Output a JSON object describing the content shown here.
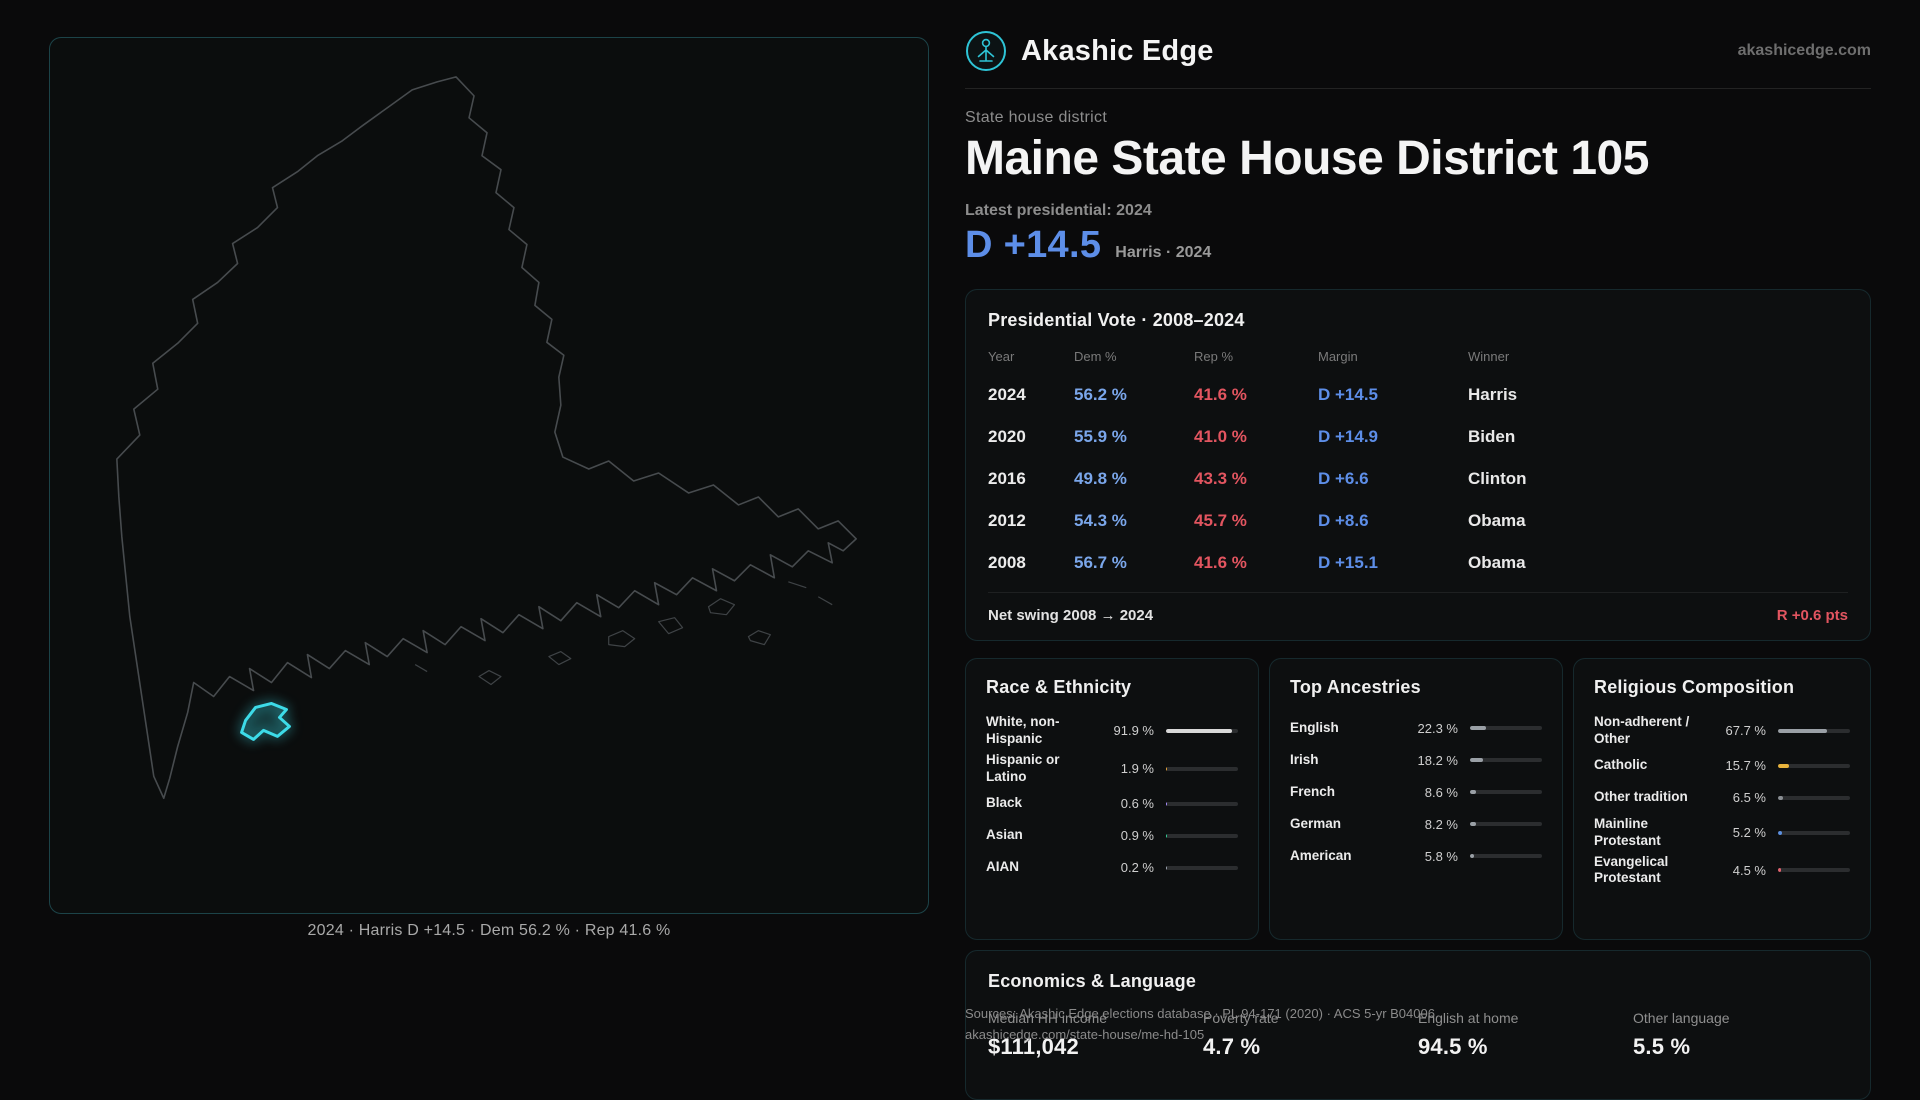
{
  "brand": {
    "name": "Akashic Edge",
    "site": "akashicedge.com"
  },
  "map": {
    "caption": "2024 · Harris D +14.5 · Dem 56.2 % · Rep 41.6 %"
  },
  "overview": {
    "eyebrow": "State house district",
    "title": "Maine State House District 105",
    "latest_label": "Latest presidential: 2024",
    "margin": "D +14.5",
    "margin_note": "Harris · 2024"
  },
  "presidential": {
    "title": "Presidential Vote · 2008–2024",
    "columns": {
      "year": "Year",
      "dem": "Dem %",
      "rep": "Rep %",
      "margin": "Margin",
      "winner": "Winner"
    },
    "rows": [
      {
        "year": "2024",
        "dem": "56.2 %",
        "rep": "41.6 %",
        "margin": "D +14.5",
        "winner": "Harris"
      },
      {
        "year": "2020",
        "dem": "55.9 %",
        "rep": "41.0 %",
        "margin": "D +14.9",
        "winner": "Biden"
      },
      {
        "year": "2016",
        "dem": "49.8 %",
        "rep": "43.3 %",
        "margin": "D +6.6",
        "winner": "Clinton"
      },
      {
        "year": "2012",
        "dem": "54.3 %",
        "rep": "45.7 %",
        "margin": "D +8.6",
        "winner": "Obama"
      },
      {
        "year": "2008",
        "dem": "56.7 %",
        "rep": "41.6 %",
        "margin": "D +15.1",
        "winner": "Obama"
      }
    ],
    "net_swing_label": "Net swing 2008 → 2024",
    "net_swing_value": "R +0.6 pts"
  },
  "race": {
    "title": "Race & Ethnicity",
    "rows": [
      {
        "label": "White, non-Hispanic",
        "value": "91.9 %",
        "pct": 91.9,
        "color": "#d8d8d8"
      },
      {
        "label": "Hispanic or Latino",
        "value": "1.9 %",
        "pct": 1.9,
        "color": "#e5a33a"
      },
      {
        "label": "Black",
        "value": "0.6 %",
        "pct": 0.6,
        "color": "#a78bfa"
      },
      {
        "label": "Asian",
        "value": "0.9 %",
        "pct": 0.9,
        "color": "#34d399"
      },
      {
        "label": "AIAN",
        "value": "0.2 %",
        "pct": 0.2,
        "color": "#9ca3af"
      }
    ]
  },
  "ancestries": {
    "title": "Top Ancestries",
    "rows": [
      {
        "label": "English",
        "value": "22.3 %",
        "pct": 22.3,
        "color": "#9aa0a6"
      },
      {
        "label": "Irish",
        "value": "18.2 %",
        "pct": 18.2,
        "color": "#9aa0a6"
      },
      {
        "label": "French",
        "value": "8.6 %",
        "pct": 8.6,
        "color": "#9aa0a6"
      },
      {
        "label": "German",
        "value": "8.2 %",
        "pct": 8.2,
        "color": "#9aa0a6"
      },
      {
        "label": "American",
        "value": "5.8 %",
        "pct": 5.8,
        "color": "#9aa0a6"
      }
    ]
  },
  "religion": {
    "title": "Religious Composition",
    "rows": [
      {
        "label": "Non-adherent / Other",
        "value": "67.7 %",
        "pct": 67.7,
        "color": "#9aa0a6"
      },
      {
        "label": "Catholic",
        "value": "15.7 %",
        "pct": 15.7,
        "color": "#e8b33c"
      },
      {
        "label": "Other tradition",
        "value": "6.5 %",
        "pct": 6.5,
        "color": "#8a8f94"
      },
      {
        "label": "Mainline Protestant",
        "value": "5.2 %",
        "pct": 5.2,
        "color": "#5b8fe0"
      },
      {
        "label": "Evangelical Protestant",
        "value": "4.5 %",
        "pct": 4.5,
        "color": "#e2636e"
      }
    ]
  },
  "economics": {
    "title": "Economics & Language",
    "stats": [
      {
        "label": "Median HH income",
        "value": "$111,042"
      },
      {
        "label": "Poverty rate",
        "value": "4.7 %"
      },
      {
        "label": "English at home",
        "value": "94.5 %"
      },
      {
        "label": "Other language",
        "value": "5.5 %"
      }
    ]
  },
  "footer": {
    "line1": "Sources: Akashic Edge elections database · PL 94-171 (2020) · ACS 5-yr B04006",
    "line2": "akashicedge.com/state-house/me-hd-105"
  },
  "colors": {
    "accent": "#3ddbe8",
    "dem": "#5d8ee8",
    "rep": "#e25560"
  }
}
